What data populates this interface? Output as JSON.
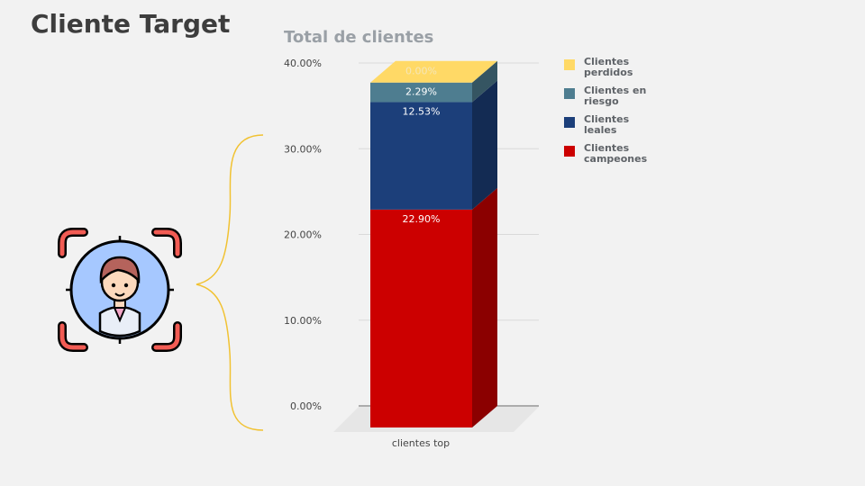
{
  "page": {
    "title": "Cliente Target"
  },
  "icons": {
    "customer_target": "customer-target-icon",
    "bracket": "curly-brace"
  },
  "chart_data": {
    "type": "bar",
    "stacked": true,
    "title": "Total de clientes",
    "categories": [
      "clientes top"
    ],
    "series": [
      {
        "name": "Clientes campeones",
        "values": [
          22.9
        ],
        "label": "22.90%",
        "color": "#cc0000"
      },
      {
        "name": "Clientes leales",
        "values": [
          12.53
        ],
        "label": "12.53%",
        "color": "#1c3f7a"
      },
      {
        "name": "Clientes en riesgo",
        "values": [
          2.29
        ],
        "label": "2.29%",
        "color": "#4e7d90"
      },
      {
        "name": "Clientes perdidos",
        "values": [
          0.0
        ],
        "label": "0.00%",
        "color": "#ffd966"
      }
    ],
    "ylim": [
      0,
      40
    ],
    "yticks": [
      "0.00%",
      "10.00%",
      "20.00%",
      "30.00%",
      "40.00%"
    ],
    "grid": true,
    "legend_position": "right"
  }
}
